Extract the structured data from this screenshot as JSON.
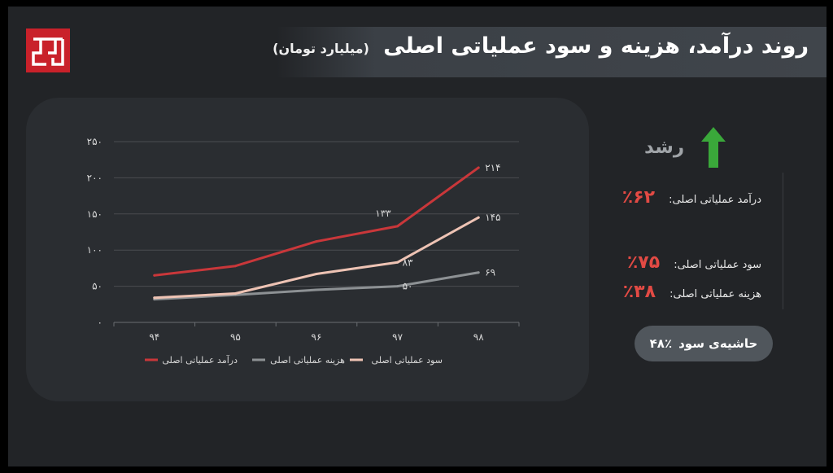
{
  "header": {
    "title": "روند درآمد، هزینه و سود عملیاتی اصلی",
    "unit": "(میلیارد تومان)"
  },
  "logo": {
    "icon": "tg-logo-icon",
    "color": "#c9212a"
  },
  "chart_data": {
    "type": "line",
    "categories": [
      "۹۴",
      "۹۵",
      "۹۶",
      "۹۷",
      "۹۸"
    ],
    "series": [
      {
        "name": "درآمد عملیاتی اصلی",
        "color": "#c9373a",
        "values": [
          65,
          78,
          112,
          133,
          214
        ]
      },
      {
        "name": "هزینه عملیاتی اصلی",
        "color": "#8d9194",
        "values": [
          32,
          38,
          45,
          50,
          69
        ]
      },
      {
        "name": "سود عملیاتی اصلی",
        "color": "#eec3b4",
        "values": [
          34,
          40,
          67,
          83,
          145
        ]
      }
    ],
    "data_labels": [
      {
        "series": 0,
        "index": 3,
        "text": "۱۳۳"
      },
      {
        "series": 0,
        "index": 4,
        "text": "۲۱۴"
      },
      {
        "series": 2,
        "index": 3,
        "text": "۸۳"
      },
      {
        "series": 2,
        "index": 4,
        "text": "۱۴۵"
      },
      {
        "series": 1,
        "index": 3,
        "text": "۵۰"
      },
      {
        "series": 1,
        "index": 4,
        "text": "۶۹"
      }
    ],
    "y_ticks": [
      {
        "value": 0,
        "label": "۰"
      },
      {
        "value": 50,
        "label": "۵۰"
      },
      {
        "value": 100,
        "label": "۱۰۰"
      },
      {
        "value": 150,
        "label": "۱۵۰"
      },
      {
        "value": 200,
        "label": "۲۰۰"
      },
      {
        "value": 250,
        "label": "۲۵۰"
      }
    ],
    "ylim": [
      0,
      250
    ],
    "grid": true,
    "legend_position": "bottom"
  },
  "growth": {
    "title": "رشد",
    "arrow_icon": "arrow-up-icon",
    "arrow_color": "#3aa83a",
    "items": [
      {
        "label": "درآمد عملیاتی اصلی:",
        "value": "۶۲٪"
      },
      {
        "label": "سود عملیاتی اصلی:",
        "value": "۷۵٪"
      },
      {
        "label": "هزینه عملیاتی اصلی:",
        "value": "۳۸٪"
      }
    ]
  },
  "profit_margin": {
    "label": "حاشیه‌ی سود",
    "value": "۴۸٪"
  }
}
